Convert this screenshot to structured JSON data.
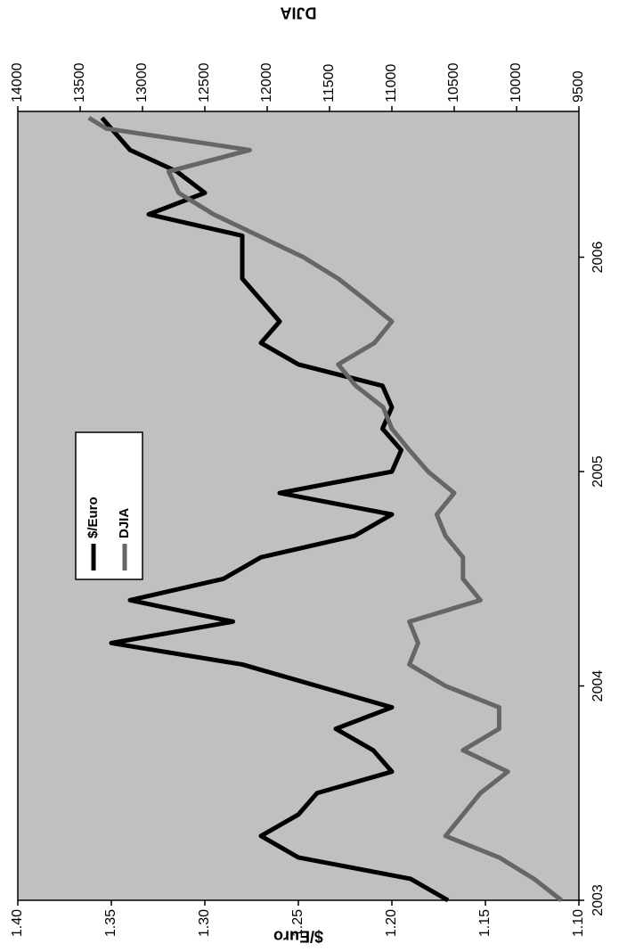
{
  "chart_data": {
    "type": "line",
    "x_label": "$/Euro",
    "y2_label": "DJIA",
    "x": [
      2003.0,
      2003.1,
      2003.2,
      2003.3,
      2003.4,
      2003.5,
      2003.6,
      2003.7,
      2003.8,
      2003.9,
      2004.0,
      2004.1,
      2004.2,
      2004.3,
      2004.4,
      2004.5,
      2004.6,
      2004.7,
      2004.8,
      2004.9,
      2005.0,
      2005.1,
      2005.2,
      2005.3,
      2005.4,
      2005.5,
      2005.6,
      2005.7,
      2005.8,
      2005.9,
      2006.0,
      2006.1,
      2006.2,
      2006.3,
      2006.4,
      2006.5,
      2006.6,
      2006.65
    ],
    "xlim": [
      2003,
      2006.68
    ],
    "xticks": [
      2003,
      2004,
      2005,
      2006
    ],
    "ylim": [
      1.1,
      1.4
    ],
    "yticks": [
      {
        "value": 1.1,
        "label": "1.10"
      },
      {
        "value": 1.15,
        "label": "1.15"
      },
      {
        "value": 1.2,
        "label": "1.20"
      },
      {
        "value": 1.25,
        "label": "1.25"
      },
      {
        "value": 1.3,
        "label": "1.30"
      },
      {
        "value": 1.35,
        "label": "1.35"
      },
      {
        "value": 1.4,
        "label": "1.40"
      }
    ],
    "y2lim": [
      9500,
      14000
    ],
    "y2ticks": [
      9500,
      10000,
      10500,
      11000,
      11500,
      12000,
      12500,
      13000,
      13500,
      14000
    ],
    "legend": "upper center",
    "background": "#c0c0c0",
    "series": [
      {
        "name": "$/Euro",
        "color": "#000000",
        "values": [
          1.17,
          1.19,
          1.25,
          1.27,
          1.25,
          1.24,
          1.2,
          1.21,
          1.23,
          1.2,
          1.24,
          1.28,
          1.35,
          1.285,
          1.34,
          1.29,
          1.27,
          1.22,
          1.2,
          1.26,
          1.2,
          1.195,
          1.205,
          1.2,
          1.205,
          1.25,
          1.27,
          1.26,
          1.27,
          1.28,
          1.28,
          1.28,
          1.33,
          1.3,
          1.315,
          1.34,
          1.35,
          1.355
        ]
      },
      {
        "name": "DJIA",
        "color": "#666666",
        "axis": "y2",
        "values": [
          9640,
          9860,
          10140,
          10570,
          10430,
          10290,
          10070,
          10430,
          10140,
          10140,
          10570,
          10860,
          10790,
          10860,
          10290,
          10430,
          10430,
          10570,
          10640,
          10500,
          10710,
          10860,
          11000,
          11070,
          11290,
          11430,
          11140,
          11000,
          11210,
          11430,
          11710,
          12070,
          12430,
          12710,
          12790,
          12140,
          13290,
          13430
        ]
      }
    ]
  }
}
